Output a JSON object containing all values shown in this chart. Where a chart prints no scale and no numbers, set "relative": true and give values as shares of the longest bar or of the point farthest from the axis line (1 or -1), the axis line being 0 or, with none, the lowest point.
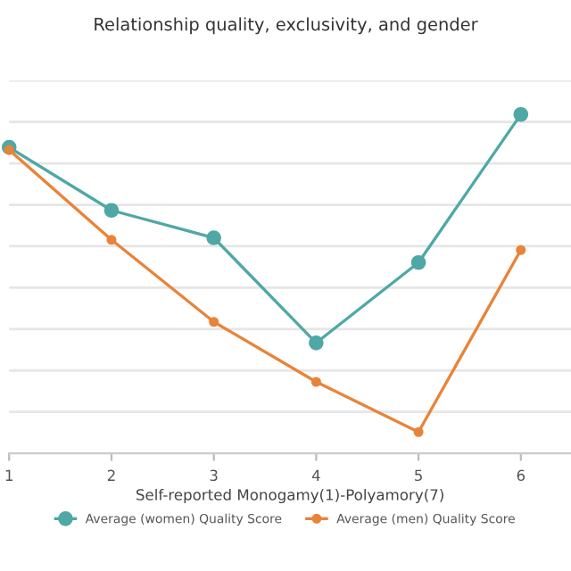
{
  "chart_data": {
    "type": "line",
    "title": "Relationship quality, exclusivity, and gender",
    "xlabel": "Self-reported Monogamy(1)-Polyamory(7)",
    "x": [
      1,
      2,
      3,
      4,
      5,
      6
    ],
    "xlim": [
      1,
      6.49
    ],
    "xticks": [
      1,
      2,
      3,
      4,
      5,
      6
    ],
    "relative": true,
    "grid": "y",
    "legend": "bottom",
    "marker": "circle",
    "line_style": "solid",
    "series": [
      {
        "name": "Average (women) Quality Score",
        "color": "#4fa8a5",
        "values": [
          0.903,
          0.717,
          0.636,
          0.326,
          0.563,
          1.0
        ]
      },
      {
        "name": "Average (men) Quality Score",
        "color": "#e8843a",
        "values": [
          0.895,
          0.63,
          0.388,
          0.211,
          0.063,
          0.6
        ]
      }
    ]
  }
}
